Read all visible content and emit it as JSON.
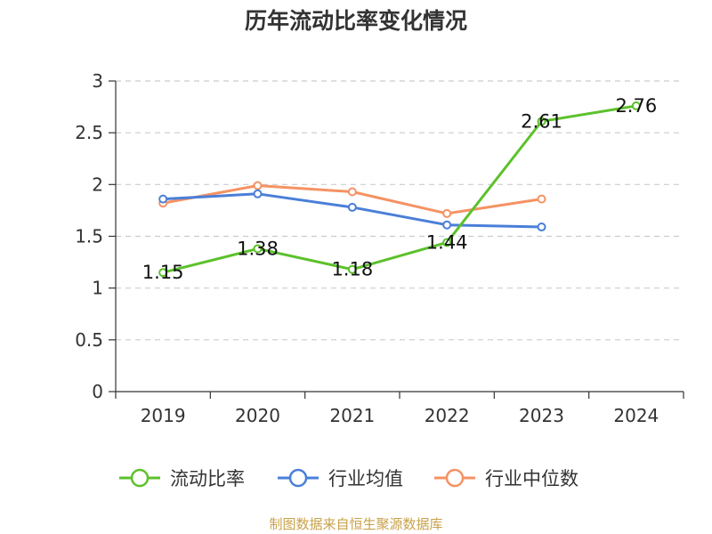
{
  "chart_data": {
    "type": "line",
    "title": "历年流动比率变化情况",
    "categories": [
      "2019",
      "2020",
      "2021",
      "2022",
      "2023",
      "2024"
    ],
    "ylim": [
      0,
      3
    ],
    "yticks": [
      "0",
      "0.5",
      "1",
      "1.5",
      "2",
      "2.5",
      "3"
    ],
    "grid": true,
    "legend_position": "bottom",
    "series": [
      {
        "name": "流动比率",
        "color": "#5cc12b",
        "values": [
          1.15,
          1.38,
          1.18,
          1.44,
          2.61,
          2.76
        ],
        "labels": [
          "1.15",
          "1.38",
          "1.18",
          "1.44",
          "2.61",
          "2.76"
        ]
      },
      {
        "name": "行业均值",
        "color": "#4a7fd8",
        "values": [
          1.86,
          1.91,
          1.78,
          1.61,
          1.59,
          null
        ]
      },
      {
        "name": "行业中位数",
        "color": "#f59263",
        "values": [
          1.82,
          1.99,
          1.93,
          1.72,
          1.86,
          null
        ]
      }
    ]
  },
  "source": "制图数据来自恒生聚源数据库"
}
